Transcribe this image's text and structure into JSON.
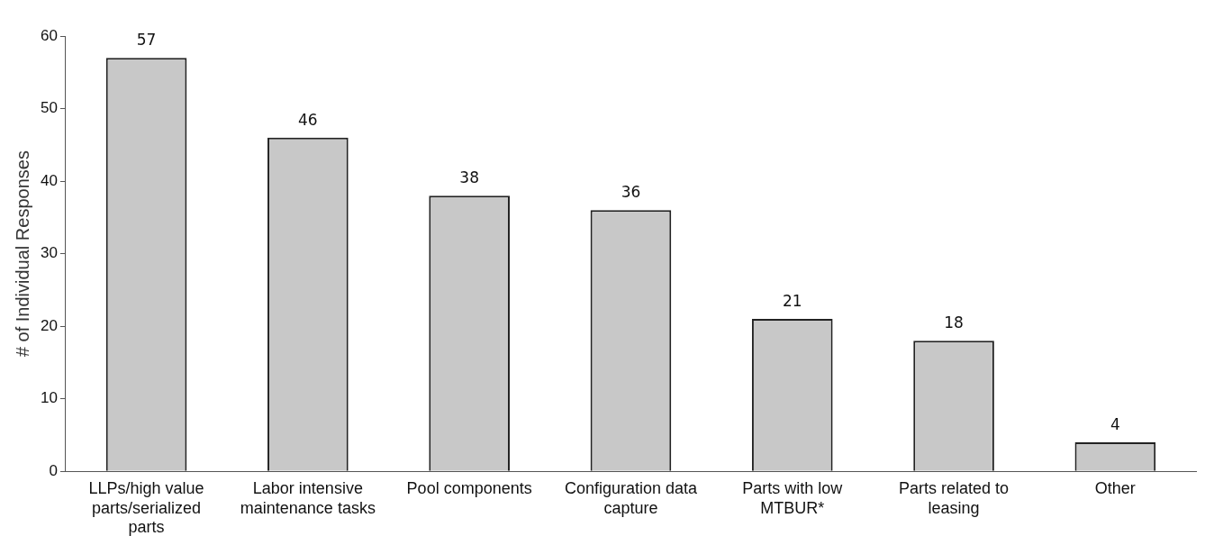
{
  "chart_data": {
    "type": "bar",
    "ylabel": "# of Individual Responses",
    "categories": [
      "LLPs/high value parts/serialized parts",
      "Labor intensive maintenance tasks",
      "Pool components",
      "Configuration data capture",
      "Parts with low MTBUR*",
      "Parts related to leasing",
      "Other"
    ],
    "values": [
      57,
      46,
      38,
      36,
      21,
      18,
      4
    ],
    "color": "#c8c8c8",
    "ylim": [
      0,
      60
    ],
    "yticks": [
      0,
      10,
      20,
      30,
      40,
      50,
      60
    ],
    "grid": false,
    "legend": false,
    "data_labels": true
  }
}
